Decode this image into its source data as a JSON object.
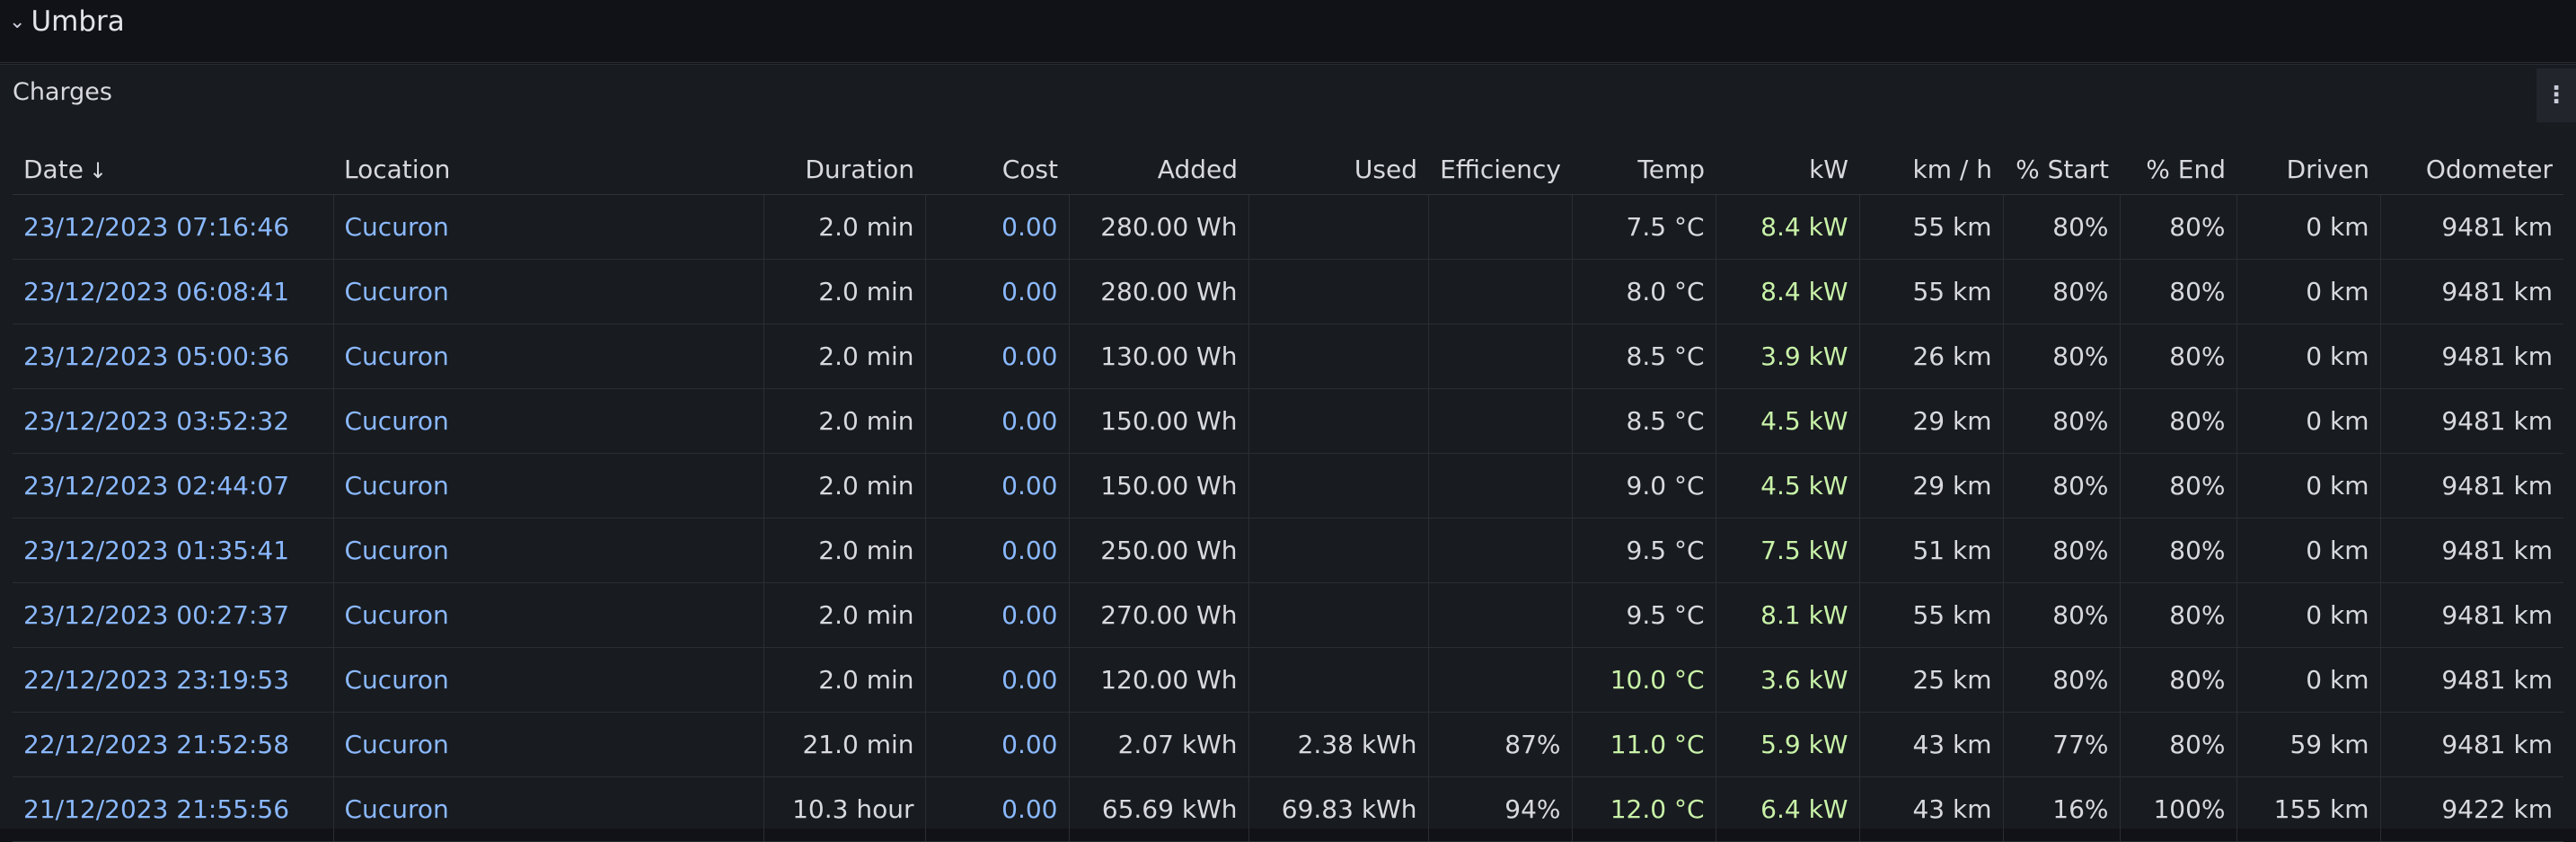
{
  "row": {
    "title": "Umbra",
    "chevron": "chevron-down-icon"
  },
  "panel": {
    "title": "Charges",
    "menu_icon": "kebab-menu-icon"
  },
  "colors": {
    "link": "#8ab8ff",
    "kw_green": "#c8f2a8",
    "temp_green": "#c8f2a8"
  },
  "table": {
    "columns": [
      "Date",
      "Location",
      "Duration",
      "Cost",
      "Added",
      "Used",
      "Efficiency",
      "Temp",
      "kW",
      "km / h",
      "% Start",
      "% End",
      "Driven",
      "Odometer"
    ],
    "sort_column": "Date",
    "sort_direction": "descending",
    "rows": [
      [
        "23/12/2023 07:16:46",
        "Cucuron",
        "2.0 min",
        "0.00",
        "280.00 Wh",
        "",
        "",
        "7.5 °C",
        "8.4 kW",
        "55 km",
        "80%",
        "80%",
        "0 km",
        "9481 km"
      ],
      [
        "23/12/2023 06:08:41",
        "Cucuron",
        "2.0 min",
        "0.00",
        "280.00 Wh",
        "",
        "",
        "8.0 °C",
        "8.4 kW",
        "55 km",
        "80%",
        "80%",
        "0 km",
        "9481 km"
      ],
      [
        "23/12/2023 05:00:36",
        "Cucuron",
        "2.0 min",
        "0.00",
        "130.00 Wh",
        "",
        "",
        "8.5 °C",
        "3.9 kW",
        "26 km",
        "80%",
        "80%",
        "0 km",
        "9481 km"
      ],
      [
        "23/12/2023 03:52:32",
        "Cucuron",
        "2.0 min",
        "0.00",
        "150.00 Wh",
        "",
        "",
        "8.5 °C",
        "4.5 kW",
        "29 km",
        "80%",
        "80%",
        "0 km",
        "9481 km"
      ],
      [
        "23/12/2023 02:44:07",
        "Cucuron",
        "2.0 min",
        "0.00",
        "150.00 Wh",
        "",
        "",
        "9.0 °C",
        "4.5 kW",
        "29 km",
        "80%",
        "80%",
        "0 km",
        "9481 km"
      ],
      [
        "23/12/2023 01:35:41",
        "Cucuron",
        "2.0 min",
        "0.00",
        "250.00 Wh",
        "",
        "",
        "9.5 °C",
        "7.5 kW",
        "51 km",
        "80%",
        "80%",
        "0 km",
        "9481 km"
      ],
      [
        "23/12/2023 00:27:37",
        "Cucuron",
        "2.0 min",
        "0.00",
        "270.00 Wh",
        "",
        "",
        "9.5 °C",
        "8.1 kW",
        "55 km",
        "80%",
        "80%",
        "0 km",
        "9481 km"
      ],
      [
        "22/12/2023 23:19:53",
        "Cucuron",
        "2.0 min",
        "0.00",
        "120.00 Wh",
        "",
        "",
        "10.0 °C",
        "3.6 kW",
        "25 km",
        "80%",
        "80%",
        "0 km",
        "9481 km"
      ],
      [
        "22/12/2023 21:52:58",
        "Cucuron",
        "21.0 min",
        "0.00",
        "2.07 kWh",
        "2.38 kWh",
        "87%",
        "11.0 °C",
        "5.9 kW",
        "43 km",
        "77%",
        "80%",
        "59 km",
        "9481 km"
      ],
      [
        "21/12/2023 21:55:56",
        "Cucuron",
        "10.3 hour",
        "0.00",
        "65.69 kWh",
        "69.83 kWh",
        "94%",
        "12.0 °C",
        "6.4 kW",
        "43 km",
        "16%",
        "100%",
        "155 km",
        "9422 km"
      ]
    ]
  }
}
